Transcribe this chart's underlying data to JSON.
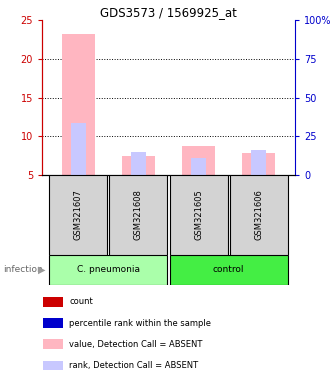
{
  "title": "GDS3573 / 1569925_at",
  "samples": [
    "GSM321607",
    "GSM321608",
    "GSM321605",
    "GSM321606"
  ],
  "group_label": "infection",
  "ylim_left": [
    5,
    25
  ],
  "ylim_right": [
    0,
    100
  ],
  "yticks_left": [
    5,
    10,
    15,
    20,
    25
  ],
  "yticks_right": [
    0,
    25,
    50,
    75,
    100
  ],
  "ytick_labels_left": [
    "5",
    "10",
    "15",
    "20",
    "25"
  ],
  "ytick_labels_right": [
    "0",
    "25",
    "50",
    "75",
    "100%"
  ],
  "values_absent": [
    23.2,
    7.5,
    8.7,
    7.9
  ],
  "ranks_absent": [
    11.7,
    8.0,
    7.2,
    8.2
  ],
  "color_value_absent": "#ffb6c1",
  "color_rank_absent": "#c8c8ff",
  "color_count": "#cc0000",
  "color_pct_rank": "#0000cc",
  "left_tick_color": "#cc0000",
  "right_tick_color": "#0000cc",
  "bg_color": "#ffffff",
  "sample_box_color": "#d3d3d3",
  "cpneumo_color": "#aaffaa",
  "control_color": "#44ee44",
  "group_border_color": "#000000",
  "legend_items": [
    {
      "label": "count",
      "color": "#cc0000"
    },
    {
      "label": "percentile rank within the sample",
      "color": "#0000cc"
    },
    {
      "label": "value, Detection Call = ABSENT",
      "color": "#ffb6c1"
    },
    {
      "label": "rank, Detection Call = ABSENT",
      "color": "#c8c8ff"
    }
  ]
}
